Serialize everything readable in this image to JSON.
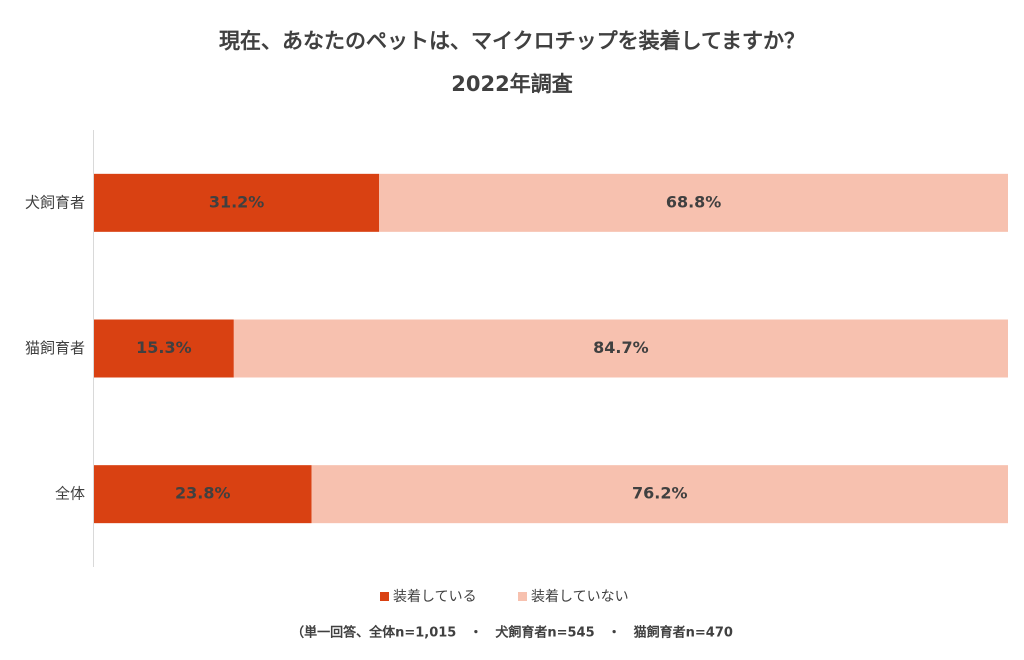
{
  "chart_data": {
    "type": "stacked_barh",
    "title": "現在、あなたのペットは、マイクロチップを装着してますか？",
    "subtitle": "2022年調査",
    "categories": [
      "犬飼育者",
      "猫飼育者",
      "全体"
    ],
    "series": [
      {
        "name": "装着している",
        "color": "#d94112",
        "values": [
          31.2,
          15.3,
          23.8
        ],
        "value_labels": [
          "31.2%",
          "15.3%",
          "23.8%"
        ]
      },
      {
        "name": "装着していない",
        "color": "#f7c1af",
        "values": [
          68.8,
          84.7,
          76.2
        ],
        "value_labels": [
          "68.8%",
          "84.7%",
          "76.2%"
        ]
      }
    ],
    "xlim": [
      0,
      100
    ],
    "legend": "bottom",
    "note": "（単一回答、全体n=1,015　・　犬飼育者n=545　・　猫飼育者n=470"
  }
}
